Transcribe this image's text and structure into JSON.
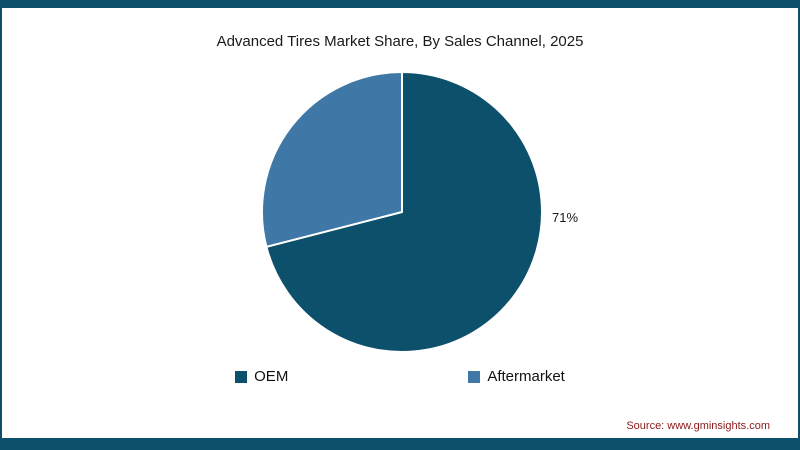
{
  "frame": {
    "accent_color": "#0d506c"
  },
  "title": "Advanced Tires Market Share, By Sales Channel, 2025",
  "source": "Source: www.gminsights.com",
  "source_color": "#8b1a1a",
  "chart_data": {
    "type": "pie",
    "title": "Advanced Tires Market Share, By Sales Channel, 2025",
    "slices": [
      {
        "label": "OEM",
        "value": 71,
        "color": "#0d506c"
      },
      {
        "label": "Aftermarket",
        "value": 29,
        "color": "#3f78a6"
      }
    ],
    "data_labels": {
      "oem": "71%"
    },
    "start_angle_deg": 0,
    "direction": "clockwise",
    "slice_border_color": "#ffffff",
    "legend_position": "bottom"
  },
  "legend": {
    "items": [
      {
        "label": "OEM",
        "color": "#0d506c"
      },
      {
        "label": "Aftermarket",
        "color": "#3f78a6"
      }
    ]
  }
}
